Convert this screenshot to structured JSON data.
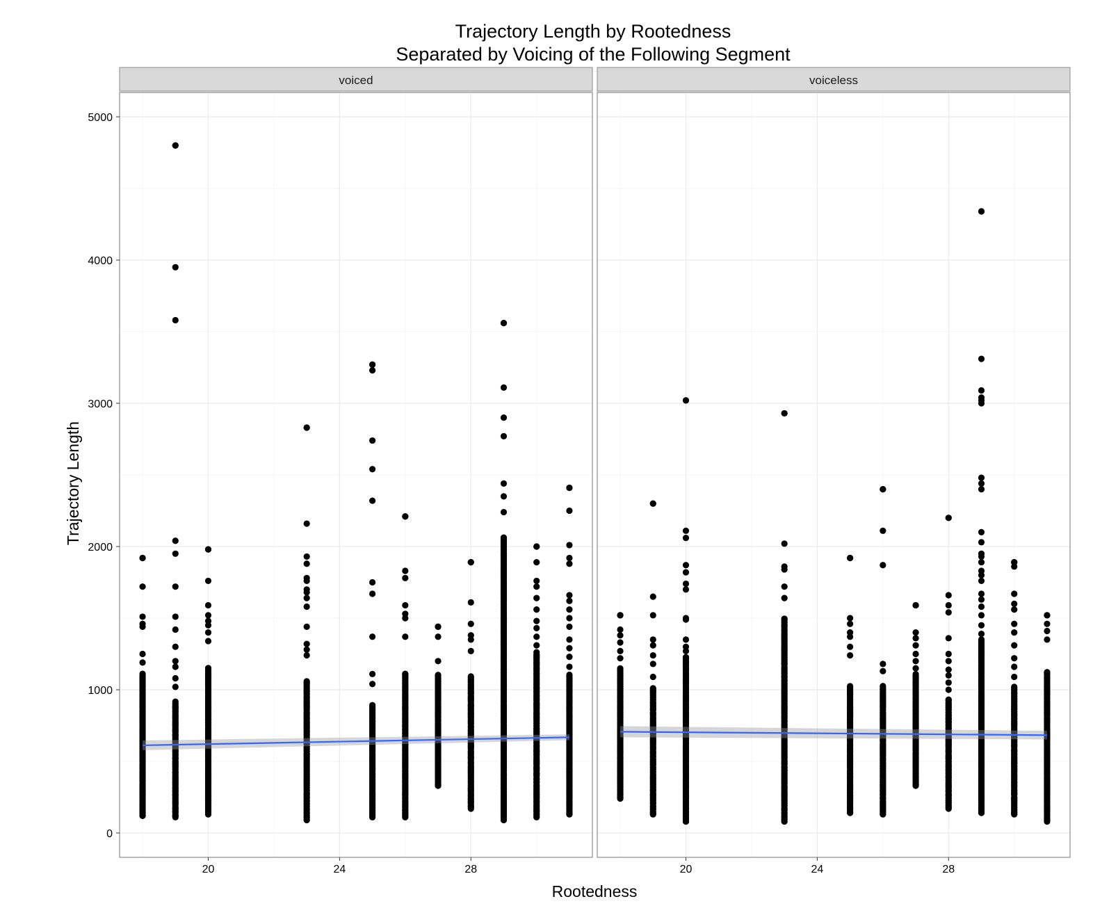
{
  "chart_data": {
    "type": "scatter",
    "title": "Trajectory Length by Rootedness",
    "subtitle": "Separated by Voicing of the Following Segment",
    "xlabel": "Rootedness",
    "ylabel": "Trajectory Length",
    "xlim": [
      17.3,
      31.7
    ],
    "ylim": [
      -170,
      5170
    ],
    "x_ticks": [
      20,
      24,
      28
    ],
    "y_ticks": [
      0,
      1000,
      2000,
      3000,
      4000,
      5000
    ],
    "grid": true,
    "colors": {
      "points": "#000000",
      "fit_line": "#3366ff",
      "ribbon": "#999999",
      "strip": "#d9d9d9",
      "grid": "#ebebeb"
    },
    "panels": [
      {
        "strip": "voiced",
        "fit": {
          "x": [
            18,
            31
          ],
          "y": [
            612,
            668
          ],
          "se_low": [
            578,
            648
          ],
          "se_high": [
            646,
            688
          ]
        },
        "columns": [
          {
            "x": 18,
            "min": 120,
            "max": 1920,
            "dense_max": 1110,
            "extra": [
              1510,
              1720,
              1920,
              1250,
              1190,
              1460,
              1440
            ]
          },
          {
            "x": 19,
            "min": 110,
            "max": 4800,
            "dense_max": 910,
            "extra": [
              4800,
              3950,
              3580,
              2040,
              1950,
              1720,
              1510,
              1420,
              1300,
              1200,
              1160,
              1080,
              1020
            ]
          },
          {
            "x": 20,
            "min": 130,
            "max": 1980,
            "dense_max": 1150,
            "extra": [
              1980,
              1760,
              1590,
              1520,
              1480,
              1450,
              1400,
              1340
            ]
          },
          {
            "x": 23,
            "min": 90,
            "max": 2830,
            "dense_max": 1060,
            "extra": [
              2830,
              2160,
              1930,
              1880,
              1780,
              1760,
              1700,
              1680,
              1640,
              1580,
              1440,
              1320,
              1280,
              1240
            ]
          },
          {
            "x": 25,
            "min": 110,
            "max": 3270,
            "dense_max": 890,
            "extra": [
              3270,
              3230,
              2740,
              2540,
              2320,
              1750,
              1670,
              1370,
              1110,
              1040
            ]
          },
          {
            "x": 26,
            "min": 110,
            "max": 2210,
            "dense_max": 1110,
            "extra": [
              2210,
              1830,
              1780,
              1590,
              1530,
              1500,
              1370
            ]
          },
          {
            "x": 27,
            "min": 330,
            "max": 1440,
            "dense_max": 1100,
            "extra": [
              1440,
              1370,
              1200
            ]
          },
          {
            "x": 28,
            "min": 170,
            "max": 1890,
            "dense_max": 1090,
            "extra": [
              1890,
              1610,
              1460,
              1380,
              1350,
              1270
            ]
          },
          {
            "x": 29,
            "min": 90,
            "max": 3560,
            "dense_max": 2060,
            "extra": [
              3560,
              3110,
              2900,
              2770,
              2440,
              2350,
              2240
            ]
          },
          {
            "x": 30,
            "min": 110,
            "max": 2000,
            "dense_max": 1260,
            "extra": [
              2000,
              1890,
              1760,
              1720,
              1640,
              1560,
              1480,
              1430,
              1370,
              1310
            ]
          },
          {
            "x": 31,
            "min": 130,
            "max": 2410,
            "dense_max": 1100,
            "extra": [
              2410,
              2250,
              2010,
              1920,
              1880,
              1660,
              1620,
              1560,
              1500,
              1440,
              1350,
              1290,
              1230,
              1160
            ]
          }
        ]
      },
      {
        "strip": "voiceless",
        "fit": {
          "x": [
            18,
            31
          ],
          "y": [
            707,
            683
          ],
          "se_low": [
            668,
            653
          ],
          "se_high": [
            746,
            713
          ]
        },
        "columns": [
          {
            "x": 18,
            "min": 240,
            "max": 1520,
            "dense_max": 1150,
            "extra": [
              1520,
              1420,
              1380,
              1330,
              1270,
              1220
            ]
          },
          {
            "x": 19,
            "min": 130,
            "max": 2300,
            "dense_max": 1010,
            "extra": [
              2300,
              1650,
              1520,
              1350,
              1310,
              1240,
              1180,
              1090
            ]
          },
          {
            "x": 20,
            "min": 80,
            "max": 3020,
            "dense_max": 1230,
            "extra": [
              3020,
              2110,
              2060,
              1870,
              1820,
              1740,
              1700,
              1500,
              1490,
              1350,
              1300,
              1270
            ]
          },
          {
            "x": 23,
            "min": 80,
            "max": 2930,
            "dense_max": 1500,
            "extra": [
              2930,
              2020,
              1860,
              1840,
              1720,
              1640
            ]
          },
          {
            "x": 25,
            "min": 140,
            "max": 1920,
            "dense_max": 1020,
            "extra": [
              1920,
              1500,
              1460,
              1400,
              1370,
              1300,
              1240
            ]
          },
          {
            "x": 26,
            "min": 130,
            "max": 2400,
            "dense_max": 1020,
            "extra": [
              2400,
              2110,
              1870,
              1180,
              1130
            ]
          },
          {
            "x": 27,
            "min": 330,
            "max": 1590,
            "dense_max": 1110,
            "extra": [
              1590,
              1400,
              1360,
              1310,
              1250,
              1200,
              1150
            ]
          },
          {
            "x": 28,
            "min": 170,
            "max": 2200,
            "dense_max": 930,
            "extra": [
              2200,
              1660,
              1590,
              1540,
              1360,
              1250,
              1200,
              1140,
              1100,
              1050,
              1000
            ]
          },
          {
            "x": 29,
            "min": 140,
            "max": 4340,
            "dense_max": 1350,
            "extra": [
              4340,
              3310,
              3090,
              3040,
              3020,
              3000,
              2480,
              2440,
              2400,
              2100,
              2030,
              1950,
              1930,
              1890,
              1830,
              1800,
              1760,
              1670,
              1630,
              1580,
              1520,
              1450,
              1390
            ]
          },
          {
            "x": 30,
            "min": 130,
            "max": 1890,
            "dense_max": 1020,
            "extra": [
              1890,
              1860,
              1670,
              1600,
              1560,
              1460,
              1400,
              1310,
              1220,
              1160,
              1090
            ]
          },
          {
            "x": 31,
            "min": 80,
            "max": 1520,
            "dense_max": 1120,
            "extra": [
              1520,
              1460,
              1410,
              1350
            ]
          }
        ]
      }
    ]
  }
}
